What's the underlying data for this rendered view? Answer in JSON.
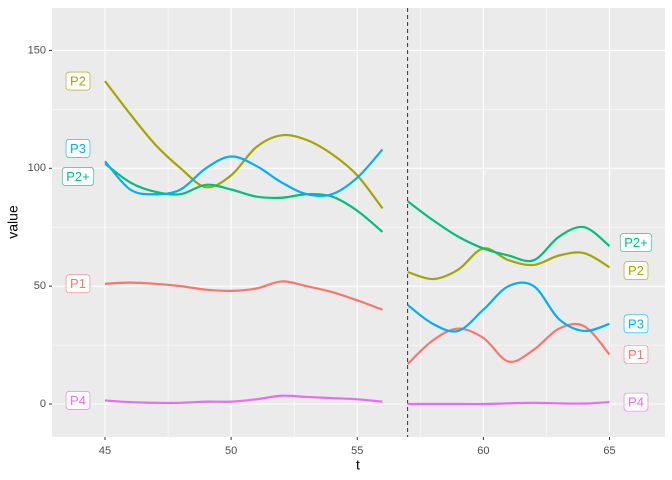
{
  "chart_data": {
    "type": "line",
    "x_label": "t",
    "y_label": "value",
    "x": [
      45,
      46,
      47,
      48,
      49,
      50,
      51,
      52,
      53,
      54,
      55,
      56,
      57,
      58,
      59,
      60,
      61,
      62,
      63,
      64,
      65
    ],
    "series": [
      {
        "name": "P1",
        "color": "#F8766D",
        "values": [
          51,
          51.5,
          51,
          50,
          48.5,
          48,
          49,
          52,
          50,
          47.5,
          44,
          40,
          17,
          27,
          32,
          28,
          18,
          23,
          32,
          33,
          21
        ]
      },
      {
        "name": "P2",
        "color": "#A3A500",
        "values": [
          137,
          123,
          110,
          100,
          92,
          97,
          109,
          114,
          112,
          106,
          97,
          83,
          56,
          53,
          57,
          66,
          61,
          59,
          63,
          64,
          58
        ]
      },
      {
        "name": "P2+",
        "color": "#00BF7D",
        "values": [
          102,
          94,
          90,
          89,
          93,
          91,
          88,
          87.5,
          89,
          88,
          82,
          73,
          86,
          78,
          71,
          66,
          63,
          61,
          71,
          75,
          67
        ]
      },
      {
        "name": "P3",
        "color": "#00B0F6",
        "values": [
          103,
          91,
          89,
          91,
          100,
          105,
          101,
          94,
          89,
          89,
          96,
          108,
          42,
          34,
          31,
          40,
          50,
          50,
          36,
          31,
          34
        ]
      },
      {
        "name": "P4",
        "color": "#E76BF3",
        "values": [
          1.5,
          0.8,
          0.5,
          0.5,
          1,
          1,
          2,
          3.5,
          3,
          2.5,
          2,
          1,
          0,
          0,
          0,
          0,
          0.3,
          0.5,
          0.3,
          0.2,
          0.8
        ]
      }
    ],
    "vline": 57,
    "xlim": [
      42.9,
      67.2
    ],
    "ylim": [
      -14,
      168
    ],
    "xticks": [
      45,
      50,
      55,
      60,
      65
    ],
    "yticks": [
      0,
      50,
      100,
      150
    ],
    "grid": true
  }
}
